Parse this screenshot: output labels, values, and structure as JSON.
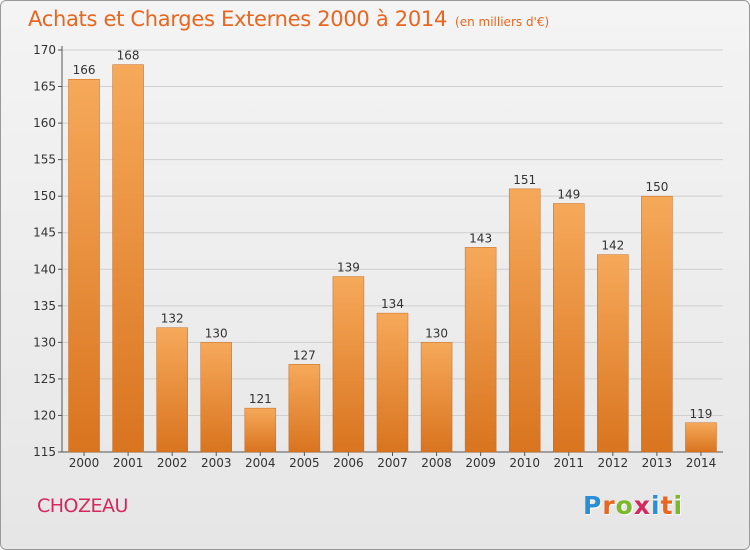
{
  "title": "Achats et Charges Externes 2000 à 2014",
  "subtitle": "(en milliers d'€)",
  "location": "CHOZEAU",
  "logo": {
    "text": "Proxiti",
    "letters": [
      "P",
      "r",
      "o",
      "x",
      "i",
      "t",
      "i"
    ],
    "colors": [
      "#2b8fd6",
      "#e8661f",
      "#7bb82a",
      "#d4285f",
      "#2b8fd6",
      "#e8661f",
      "#7bb82a"
    ]
  },
  "colors": {
    "bar_light": "#f6a95a",
    "bar_dark": "#d9741f",
    "title": "#e8661f",
    "location": "#d4285f"
  },
  "chart_data": {
    "type": "bar",
    "categories": [
      "2000",
      "2001",
      "2002",
      "2003",
      "2004",
      "2005",
      "2006",
      "2007",
      "2008",
      "2009",
      "2010",
      "2011",
      "2012",
      "2013",
      "2014"
    ],
    "values": [
      166,
      168,
      132,
      130,
      121,
      127,
      139,
      134,
      130,
      143,
      151,
      149,
      142,
      150,
      119
    ],
    "ylim": [
      115,
      170
    ],
    "yticks": [
      115,
      120,
      125,
      130,
      135,
      140,
      145,
      150,
      155,
      160,
      165,
      170
    ],
    "grid": true,
    "data_labels": true
  }
}
